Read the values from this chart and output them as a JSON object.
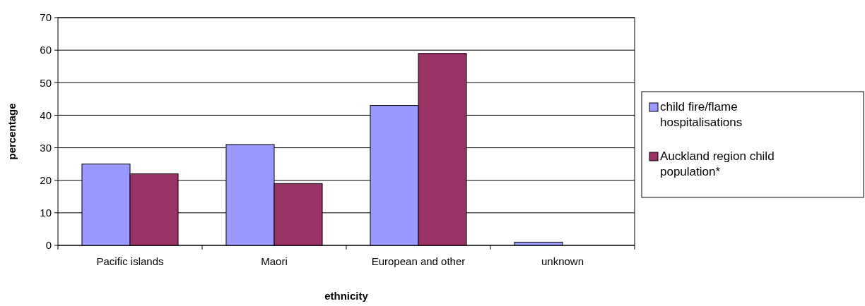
{
  "chart_data": {
    "type": "bar",
    "xlabel": "ethnicity",
    "ylabel": "percentage",
    "categories": [
      "Pacific islands",
      "Maori",
      "European and other",
      "unknown"
    ],
    "series": [
      {
        "name": "child fire/flame hospitalisations",
        "color": "#9999ff",
        "values": [
          25,
          31,
          43,
          1
        ]
      },
      {
        "name": "Auckland region child population*",
        "color": "#993366",
        "values": [
          22,
          19,
          59,
          0
        ]
      }
    ],
    "ylim": [
      0,
      70
    ],
    "yticks": [
      0,
      10,
      20,
      30,
      40,
      50,
      60,
      70
    ],
    "grid": "y",
    "legend": "right"
  }
}
